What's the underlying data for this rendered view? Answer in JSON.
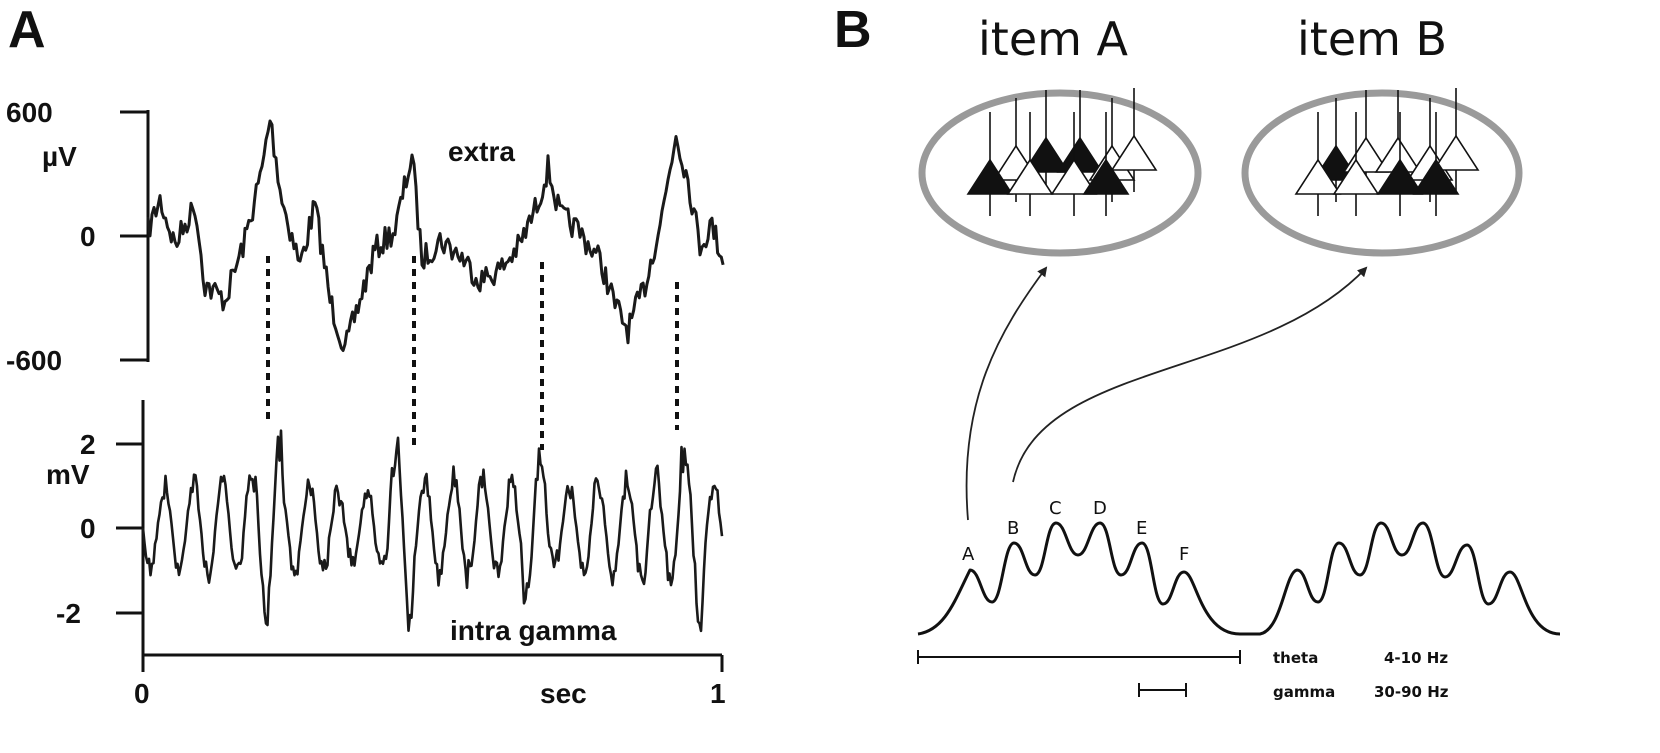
{
  "panel_a": {
    "letter": "A",
    "top_axis": {
      "tick_top": "600",
      "unit": "µV",
      "tick_mid": "0",
      "tick_bottom": "-600"
    },
    "bottom_axis": {
      "tick_top": "2",
      "unit": "mV",
      "tick_mid": "0",
      "tick_bottom": "-2"
    },
    "x_axis": {
      "tick_start": "0",
      "unit": "sec",
      "tick_end": "1"
    },
    "label_extra": "extra",
    "label_intra": "intra gamma"
  },
  "panel_b": {
    "letter": "B",
    "item_a_title": "item A",
    "item_b_title": "item B",
    "peak_labels": [
      "A",
      "B",
      "C",
      "D",
      "E",
      "F"
    ],
    "legend": {
      "theta_name": "theta",
      "theta_range": "4-10 Hz",
      "gamma_name": "gamma",
      "gamma_range": "30-90 Hz"
    }
  }
}
